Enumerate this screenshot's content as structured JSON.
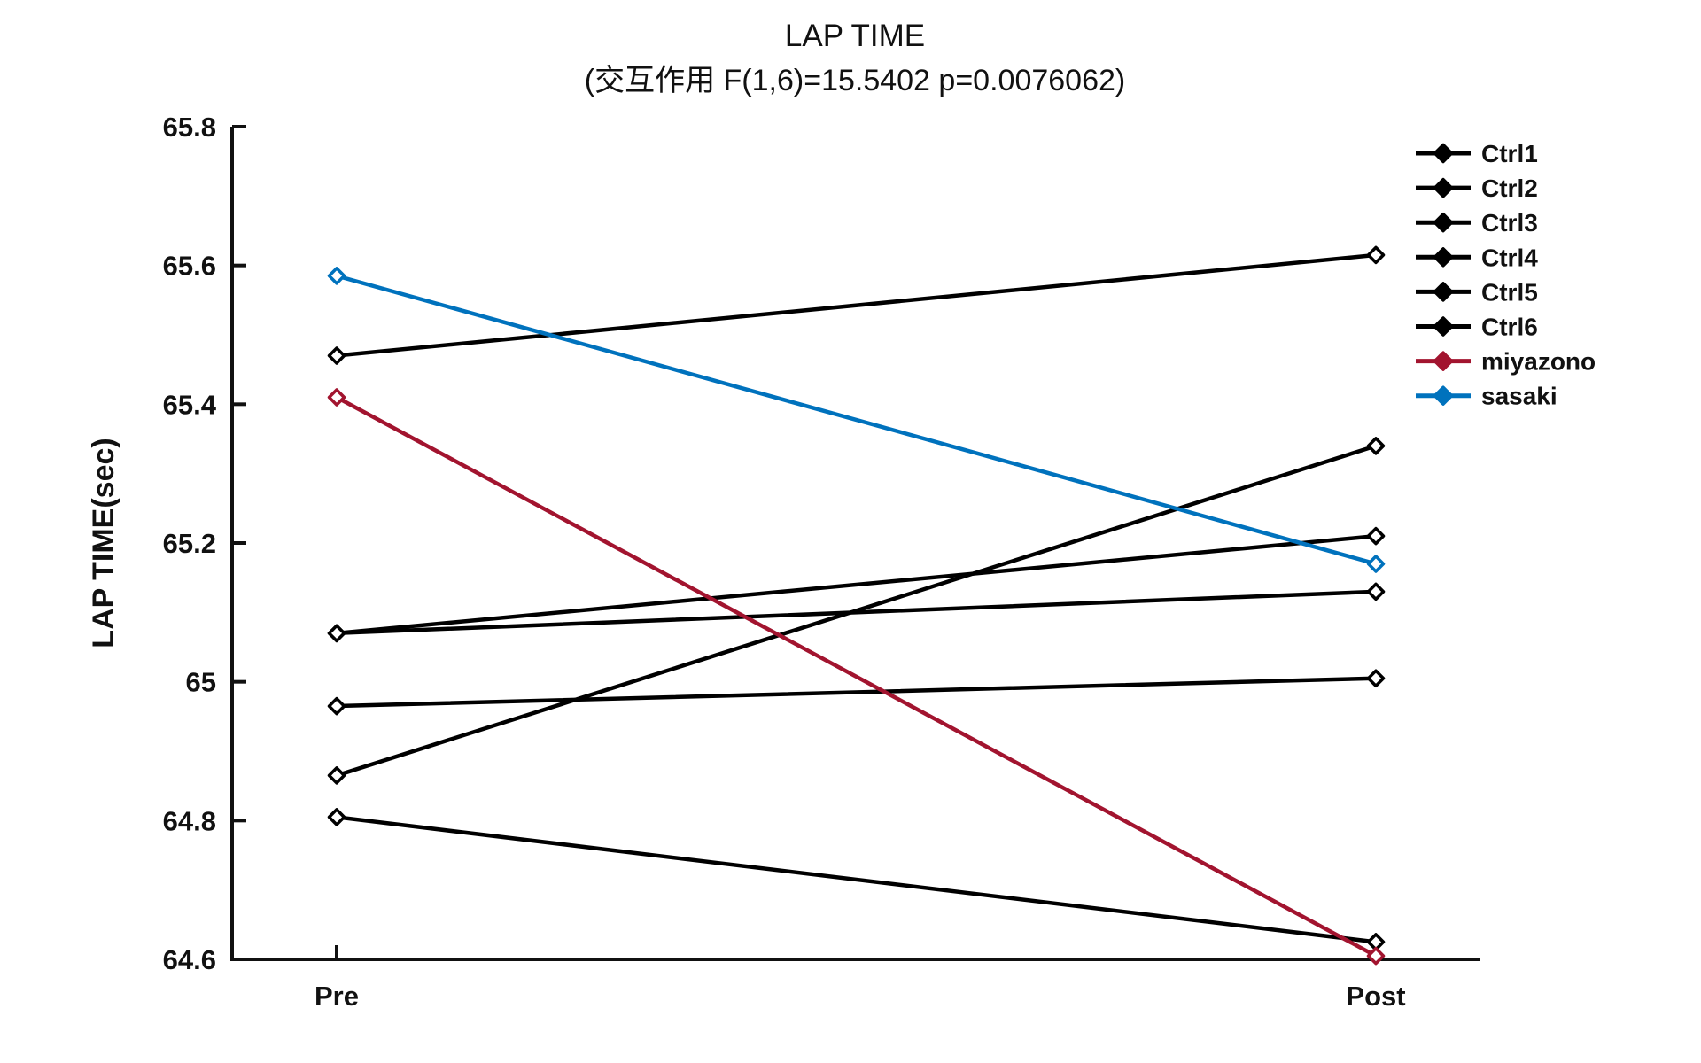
{
  "figure": {
    "background": "#ffffff",
    "text_color": "#111111"
  },
  "chart_data": {
    "type": "line",
    "title": "LAP TIME",
    "subtitle": "(交互作用 F(1,6)=15.5402 p=0.0076062)",
    "categories": [
      "Pre",
      "Post"
    ],
    "series": [
      {
        "name": "Ctrl1",
        "values": [
          65.47,
          65.615
        ],
        "color": "#000000"
      },
      {
        "name": "Ctrl2",
        "values": [
          65.07,
          65.21
        ],
        "color": "#000000"
      },
      {
        "name": "Ctrl3",
        "values": [
          65.07,
          65.13
        ],
        "color": "#000000"
      },
      {
        "name": "Ctrl4",
        "values": [
          64.965,
          65.005
        ],
        "color": "#000000"
      },
      {
        "name": "Ctrl5",
        "values": [
          64.865,
          65.34
        ],
        "color": "#000000"
      },
      {
        "name": "Ctrl6",
        "values": [
          64.805,
          64.625
        ],
        "color": "#000000"
      },
      {
        "name": "miyazono",
        "values": [
          65.41,
          64.605
        ],
        "color": "#A2142F"
      },
      {
        "name": "sasaki",
        "values": [
          65.585,
          65.17
        ],
        "color": "#0072BD"
      }
    ],
    "xlabel": "",
    "ylabel": "LAP TIME(sec)",
    "ylim": [
      64.6,
      65.8
    ],
    "yticks": [
      64.6,
      64.8,
      65.0,
      65.2,
      65.4,
      65.6,
      65.8
    ],
    "ytick_labels": [
      "64.6",
      "64.8",
      "65",
      "65.2",
      "65.4",
      "65.6",
      "65.8"
    ],
    "grid": false,
    "legend_position": "northeast",
    "legend_box": false,
    "marker": "diamond"
  }
}
